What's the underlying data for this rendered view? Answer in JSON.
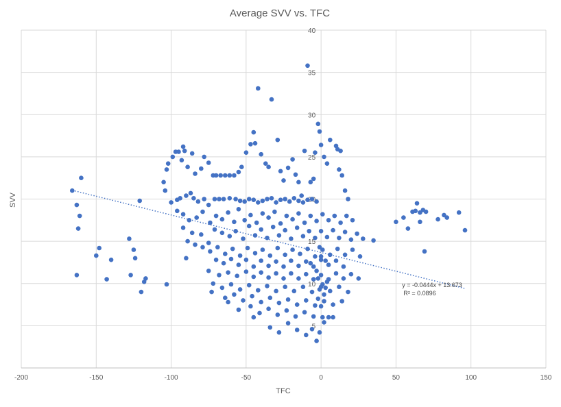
{
  "chart_data": {
    "type": "scatter",
    "title": "Average SVV vs. TFC",
    "xlabel": "TFC",
    "ylabel": "SVV",
    "xlim": [
      -200,
      150
    ],
    "ylim": [
      0,
      40
    ],
    "x_ticks": [
      -200,
      -150,
      -100,
      -50,
      0,
      50,
      100,
      150
    ],
    "y_ticks": [
      5,
      10,
      15,
      20,
      25,
      30,
      35,
      40
    ],
    "grid": "both",
    "legend": "none",
    "colors": {
      "marker": "#4472C4",
      "trendline": "#4472C4",
      "grid": "#d9d9d9"
    },
    "trendline": {
      "kind": "linear",
      "slope": -0.0444,
      "intercept": 13.673,
      "x_range": [
        -166,
        96
      ],
      "equation": "y = -0.0444x + 13.673",
      "r_squared": "R² = 0.0896"
    },
    "points": [
      [
        -166,
        21
      ],
      [
        -163,
        19.3
      ],
      [
        -162,
        16.5
      ],
      [
        -161,
        18
      ],
      [
        -160,
        22.5
      ],
      [
        -163,
        11
      ],
      [
        -150,
        13.3
      ],
      [
        -148,
        14.2
      ],
      [
        -143,
        10.5
      ],
      [
        -140,
        12.8
      ],
      [
        -128,
        15.3
      ],
      [
        -127,
        11
      ],
      [
        -125,
        14
      ],
      [
        -124,
        13
      ],
      [
        -120,
        9
      ],
      [
        -118,
        10.2
      ],
      [
        -117,
        10.6
      ],
      [
        -103,
        9.9
      ],
      [
        -121,
        19.8
      ],
      [
        -104,
        21
      ],
      [
        -105,
        22
      ],
      [
        -103,
        23.5
      ],
      [
        -102,
        24.2
      ],
      [
        -99,
        25
      ],
      [
        -97,
        25.6
      ],
      [
        -95,
        25.6
      ],
      [
        -92,
        26.2
      ],
      [
        -91,
        25.7
      ],
      [
        -93,
        24.6
      ],
      [
        -89,
        23.8
      ],
      [
        -86,
        25.4
      ],
      [
        -84,
        23
      ],
      [
        -80,
        23.6
      ],
      [
        -78,
        25
      ],
      [
        -75,
        24.3
      ],
      [
        -72,
        22.8
      ],
      [
        -70,
        22.8
      ],
      [
        -67,
        22.8
      ],
      [
        -64,
        22.8
      ],
      [
        -61,
        22.8
      ],
      [
        -58,
        22.8
      ],
      [
        -55,
        23.2
      ],
      [
        -53,
        23.8
      ],
      [
        -50,
        25.5
      ],
      [
        -47,
        26.5
      ],
      [
        -45,
        27.9
      ],
      [
        -44,
        26.6
      ],
      [
        -40,
        25.3
      ],
      [
        -37,
        24.2
      ],
      [
        -35,
        23.8
      ],
      [
        -33,
        31.8
      ],
      [
        -29,
        27
      ],
      [
        -27,
        23.3
      ],
      [
        -25,
        22.2
      ],
      [
        -22,
        23.7
      ],
      [
        -19,
        24.7
      ],
      [
        -17,
        22.9
      ],
      [
        -15,
        22
      ],
      [
        -13,
        20.4
      ],
      [
        -11,
        25.7
      ],
      [
        -9,
        35.8
      ],
      [
        -7,
        22
      ],
      [
        -5,
        22.4
      ],
      [
        -4,
        25.5
      ],
      [
        -2,
        28.9
      ],
      [
        -1,
        28
      ],
      [
        0,
        26.4
      ],
      [
        2,
        25
      ],
      [
        4,
        24.2
      ],
      [
        6,
        27
      ],
      [
        10,
        26.3
      ],
      [
        11,
        25.9
      ],
      [
        13,
        25.7
      ],
      [
        12,
        23.5
      ],
      [
        14,
        22.8
      ],
      [
        16,
        21
      ],
      [
        18,
        20
      ],
      [
        -42,
        33.1
      ],
      [
        -100,
        19.6
      ],
      [
        -96,
        19.9
      ],
      [
        -94,
        20.1
      ],
      [
        -90,
        20.4
      ],
      [
        -87,
        20.7
      ],
      [
        -85,
        20.1
      ],
      [
        -82,
        19.7
      ],
      [
        -78,
        20
      ],
      [
        -75,
        19.3
      ],
      [
        -71,
        20
      ],
      [
        -68,
        20
      ],
      [
        -65,
        20
      ],
      [
        -61,
        20.1
      ],
      [
        -57,
        20
      ],
      [
        -54,
        19.8
      ],
      [
        -51,
        19.7
      ],
      [
        -48,
        20
      ],
      [
        -45,
        19.9
      ],
      [
        -42,
        19.6
      ],
      [
        -39,
        19.8
      ],
      [
        -36,
        20
      ],
      [
        -33,
        20.1
      ],
      [
        -30,
        19.6
      ],
      [
        -27,
        19.9
      ],
      [
        -24,
        20
      ],
      [
        -21,
        19.7
      ],
      [
        -18,
        20.1
      ],
      [
        -15,
        19.8
      ],
      [
        -12,
        19.6
      ],
      [
        -9,
        19.9
      ],
      [
        -6,
        20
      ],
      [
        -3,
        19.7
      ],
      [
        -96,
        18.6
      ],
      [
        -92,
        18.2
      ],
      [
        -88,
        17.5
      ],
      [
        -83,
        17.8
      ],
      [
        -79,
        18.5
      ],
      [
        -74,
        17.2
      ],
      [
        -70,
        18
      ],
      [
        -66,
        17.6
      ],
      [
        -62,
        18.4
      ],
      [
        -58,
        17.3
      ],
      [
        -55,
        18.8
      ],
      [
        -51,
        17.5
      ],
      [
        -47,
        18.1
      ],
      [
        -43,
        17.2
      ],
      [
        -39,
        18.3
      ],
      [
        -35,
        17.8
      ],
      [
        -31,
        18.5
      ],
      [
        -27,
        17.1
      ],
      [
        -23,
        18
      ],
      [
        -19,
        17.6
      ],
      [
        -15,
        18.3
      ],
      [
        -11,
        17.2
      ],
      [
        -7,
        18
      ],
      [
        -3,
        17.4
      ],
      [
        1,
        18.2
      ],
      [
        5,
        17.5
      ],
      [
        9,
        18
      ],
      [
        13,
        17.2
      ],
      [
        17,
        18
      ],
      [
        21,
        17.5
      ],
      [
        -92,
        16.6
      ],
      [
        -86,
        16
      ],
      [
        -80,
        15.8
      ],
      [
        -75,
        14.8
      ],
      [
        -71,
        16.4
      ],
      [
        -66,
        16
      ],
      [
        -61,
        15.6
      ],
      [
        -57,
        16.2
      ],
      [
        -52,
        15.3
      ],
      [
        -48,
        16.8
      ],
      [
        -44,
        15.7
      ],
      [
        -40,
        16.4
      ],
      [
        -36,
        15.4
      ],
      [
        -32,
        16.7
      ],
      [
        -28,
        15.7
      ],
      [
        -24,
        16.3
      ],
      [
        -20,
        15.3
      ],
      [
        -16,
        16.6
      ],
      [
        -12,
        15.6
      ],
      [
        -8,
        16.2
      ],
      [
        -4,
        15.4
      ],
      [
        0,
        16.2
      ],
      [
        4,
        15.5
      ],
      [
        8,
        16.3
      ],
      [
        12,
        15.4
      ],
      [
        16,
        16.1
      ],
      [
        20,
        15.2
      ],
      [
        24,
        15.9
      ],
      [
        28,
        15.3
      ],
      [
        35,
        15.1
      ],
      [
        -89,
        15
      ],
      [
        -84,
        14.6
      ],
      [
        -79,
        14.3
      ],
      [
        -74,
        13.8
      ],
      [
        -69,
        14.3
      ],
      [
        -64,
        13.5
      ],
      [
        -59,
        14.1
      ],
      [
        -54,
        13.3
      ],
      [
        -49,
        14.2
      ],
      [
        -44,
        13.6
      ],
      [
        -39,
        14
      ],
      [
        -34,
        13.3
      ],
      [
        -29,
        14.2
      ],
      [
        -24,
        13.4
      ],
      [
        -19,
        14
      ],
      [
        -14,
        13.5
      ],
      [
        -9,
        14.1
      ],
      [
        -4,
        13.2
      ],
      [
        1,
        14
      ],
      [
        6,
        13.4
      ],
      [
        11,
        14.1
      ],
      [
        16,
        13.4
      ],
      [
        21,
        14
      ],
      [
        26,
        13.2
      ],
      [
        -90,
        13
      ],
      [
        -70,
        12.8
      ],
      [
        -65,
        12.4
      ],
      [
        -60,
        12.9
      ],
      [
        -55,
        12.2
      ],
      [
        -50,
        12.8
      ],
      [
        -45,
        12
      ],
      [
        -40,
        12.7
      ],
      [
        -35,
        12.1
      ],
      [
        -30,
        12.6
      ],
      [
        -25,
        12
      ],
      [
        -20,
        12.7
      ],
      [
        -15,
        12.1
      ],
      [
        -10,
        12.6
      ],
      [
        -5,
        12
      ],
      [
        0,
        12.8
      ],
      [
        5,
        12.2
      ],
      [
        10,
        12.7
      ],
      [
        15,
        12
      ],
      [
        -75,
        11.5
      ],
      [
        -68,
        11
      ],
      [
        -62,
        11.3
      ],
      [
        -56,
        10.9
      ],
      [
        -50,
        11.4
      ],
      [
        -45,
        10.8
      ],
      [
        -40,
        11.3
      ],
      [
        -35,
        10.7
      ],
      [
        -30,
        11.2
      ],
      [
        -25,
        10.6
      ],
      [
        -20,
        11.2
      ],
      [
        -15,
        10.6
      ],
      [
        -10,
        11.1
      ],
      [
        -5,
        10.5
      ],
      [
        0,
        11
      ],
      [
        5,
        10.5
      ],
      [
        10,
        11.2
      ],
      [
        15,
        10.6
      ],
      [
        20,
        11.1
      ],
      [
        25,
        10.6
      ],
      [
        -72,
        10
      ],
      [
        -66,
        9.5
      ],
      [
        -60,
        9.9
      ],
      [
        -54,
        9.3
      ],
      [
        -48,
        9.8
      ],
      [
        -42,
        9.2
      ],
      [
        -36,
        9.7
      ],
      [
        -30,
        9.1
      ],
      [
        -24,
        9.6
      ],
      [
        -18,
        9.1
      ],
      [
        -12,
        9.6
      ],
      [
        -6,
        9
      ],
      [
        0,
        9.6
      ],
      [
        6,
        9.1
      ],
      [
        12,
        9.6
      ],
      [
        18,
        9
      ],
      [
        -73,
        9
      ],
      [
        -64,
        8.3
      ],
      [
        -58,
        8.7
      ],
      [
        -52,
        8
      ],
      [
        -46,
        8.5
      ],
      [
        -40,
        7.8
      ],
      [
        -34,
        8.3
      ],
      [
        -28,
        7.7
      ],
      [
        -22,
        8.1
      ],
      [
        -16,
        7.5
      ],
      [
        -10,
        8
      ],
      [
        -4,
        7.4
      ],
      [
        2,
        7.9
      ],
      [
        8,
        7.5
      ],
      [
        14,
        7.9
      ],
      [
        -62,
        7.8
      ],
      [
        -55,
        6.9
      ],
      [
        -47,
        7.3
      ],
      [
        -41,
        6.5
      ],
      [
        -35,
        7
      ],
      [
        -29,
        6.3
      ],
      [
        -23,
        6.8
      ],
      [
        -17,
        6.1
      ],
      [
        -11,
        6.6
      ],
      [
        -5,
        6.1
      ],
      [
        1,
        6
      ],
      [
        -45,
        6
      ],
      [
        -34,
        4.8
      ],
      [
        -28,
        4.2
      ],
      [
        -22,
        5.3
      ],
      [
        -16,
        4.5
      ],
      [
        -10,
        3.9
      ],
      [
        -6,
        4.6
      ],
      [
        -3,
        3.2
      ],
      [
        -1,
        4.2
      ],
      [
        2,
        5.4
      ],
      [
        5,
        6
      ],
      [
        8,
        6
      ],
      [
        -7,
        12.4
      ],
      [
        -1,
        14.3
      ],
      [
        3,
        12.7
      ],
      [
        -2,
        10.6
      ],
      [
        1,
        9.9
      ],
      [
        -1,
        9.3
      ],
      [
        2,
        8.7
      ],
      [
        -3,
        11.5
      ],
      [
        0,
        13.2
      ],
      [
        4,
        10.2
      ],
      [
        -2,
        8.2
      ],
      [
        0,
        7.3
      ],
      [
        3,
        9.5
      ],
      [
        50,
        17.3
      ],
      [
        55,
        17.8
      ],
      [
        58,
        16.5
      ],
      [
        61,
        18.5
      ],
      [
        63,
        18.6
      ],
      [
        64,
        19.5
      ],
      [
        66,
        18.4
      ],
      [
        66,
        17.3
      ],
      [
        68,
        18.7
      ],
      [
        69,
        13.8
      ],
      [
        78,
        17.6
      ],
      [
        82,
        18.1
      ],
      [
        84,
        17.8
      ],
      [
        92,
        18.4
      ],
      [
        96,
        16.3
      ],
      [
        70,
        18.5
      ]
    ]
  }
}
